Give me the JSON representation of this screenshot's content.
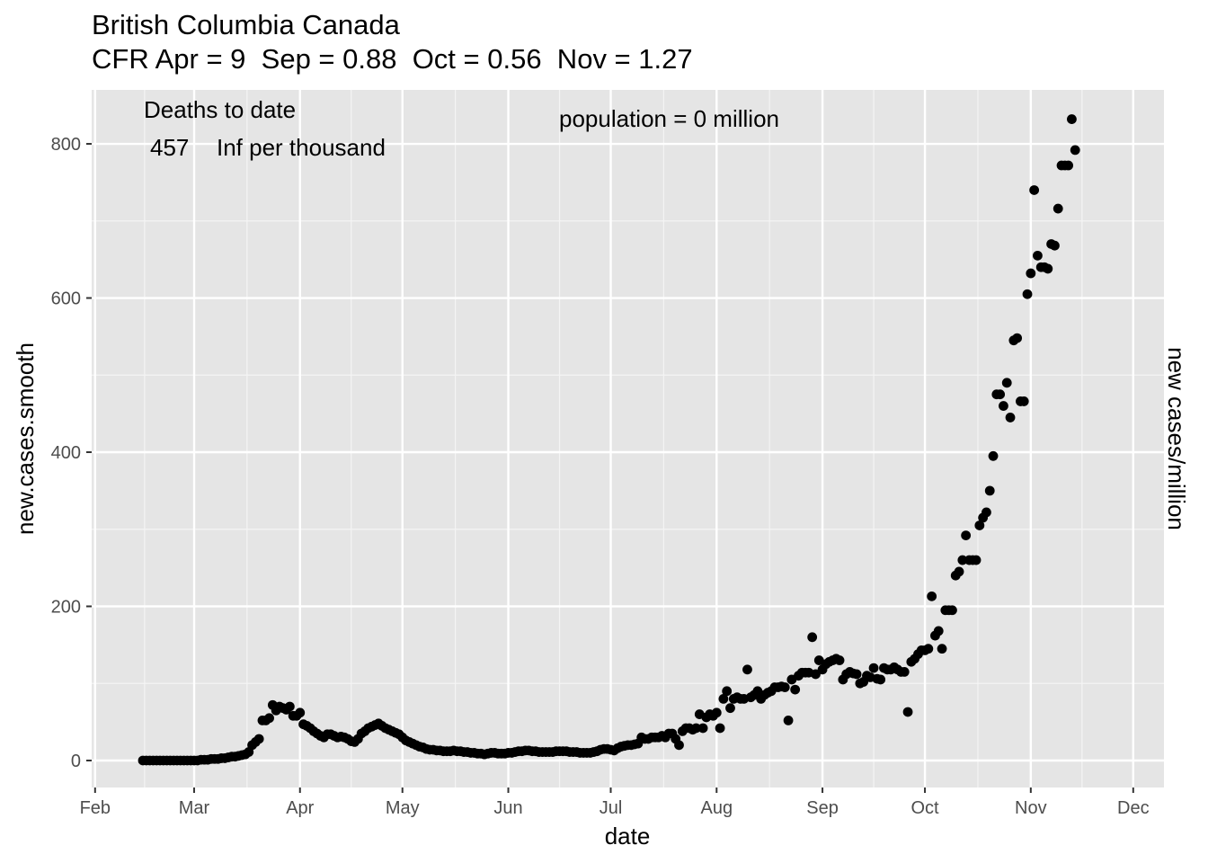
{
  "chart_data": {
    "type": "scatter",
    "title": "British Columbia Canada",
    "subtitle": "CFR Apr = 9  Sep = 0.88  Oct = 0.56  Nov = 1.27",
    "xlabel": "date",
    "ylabel": "new.cases.smooth",
    "ylabel_right": "new cases/million",
    "annotations": {
      "deaths_label": "Deaths to date",
      "deaths_value": "457",
      "deaths_rate": "Inf per thousand",
      "population": "population = 0 million"
    },
    "x_ticks": [
      "Feb",
      "Mar",
      "Apr",
      "May",
      "Jun",
      "Jul",
      "Aug",
      "Sep",
      "Oct",
      "Nov",
      "Dec"
    ],
    "y_ticks": [
      0,
      200,
      400,
      600,
      800
    ],
    "xlim": [
      "2020-01-31",
      "2020-12-10"
    ],
    "ylim": [
      -35,
      870
    ],
    "grid": true,
    "background": "#e5e5e5",
    "point_color": "#000000",
    "series": [
      {
        "start_date": "2020-02-15",
        "values": [
          0,
          0,
          0,
          0,
          0,
          0,
          0,
          0,
          0,
          0,
          0,
          0,
          0,
          0,
          0,
          0,
          0,
          1,
          1,
          1,
          2,
          2,
          2,
          3,
          3,
          4,
          5,
          5,
          6,
          7,
          8,
          11,
          20,
          24,
          28,
          52,
          52,
          55,
          72,
          65,
          70,
          68,
          66,
          70,
          58,
          58,
          62,
          47,
          45,
          42,
          38,
          35,
          32,
          30,
          34,
          34,
          32,
          30,
          31,
          30,
          28,
          25,
          24,
          28,
          35,
          38,
          42,
          44,
          46,
          48,
          45,
          42,
          40,
          38,
          36,
          34,
          30,
          26,
          24,
          22,
          20,
          18,
          17,
          15,
          14,
          14,
          13,
          13,
          12,
          12,
          12,
          13,
          12,
          12,
          11,
          11,
          10,
          10,
          9,
          9,
          8,
          9,
          10,
          10,
          9,
          9,
          9,
          10,
          10,
          11,
          12,
          12,
          13,
          13,
          12,
          12,
          11,
          11,
          11,
          11,
          11,
          12,
          12,
          12,
          12,
          11,
          11,
          11,
          10,
          10,
          10,
          10,
          11,
          12,
          14,
          15,
          15,
          14,
          13,
          16,
          18,
          19,
          20,
          20,
          21,
          22,
          30,
          28,
          28,
          30,
          30,
          30,
          32,
          30,
          35,
          35,
          28,
          20,
          38,
          42,
          42,
          40,
          42,
          60,
          42,
          56,
          60,
          58,
          62,
          42,
          80,
          90,
          68,
          80,
          82,
          80,
          80,
          118,
          82,
          85,
          90,
          80,
          85,
          88,
          90,
          95,
          95,
          96,
          95,
          52,
          105,
          92,
          110,
          114,
          114,
          114,
          160,
          112,
          130,
          118,
          125,
          128,
          130,
          132,
          130,
          105,
          112,
          115,
          113,
          112,
          100,
          102,
          110,
          108,
          120,
          106,
          105,
          120,
          118,
          118,
          121,
          118,
          115,
          115,
          63,
          128,
          132,
          138,
          143,
          143,
          145,
          213,
          162,
          168,
          145,
          195,
          195,
          195,
          240,
          245,
          260,
          292,
          260,
          260,
          260,
          305,
          315,
          322,
          350,
          395,
          475,
          475,
          460,
          490,
          445,
          545,
          548,
          466,
          466,
          605,
          632,
          740,
          655,
          640,
          640,
          638,
          670,
          668,
          716,
          772,
          772,
          772,
          832,
          792
        ]
      }
    ]
  }
}
